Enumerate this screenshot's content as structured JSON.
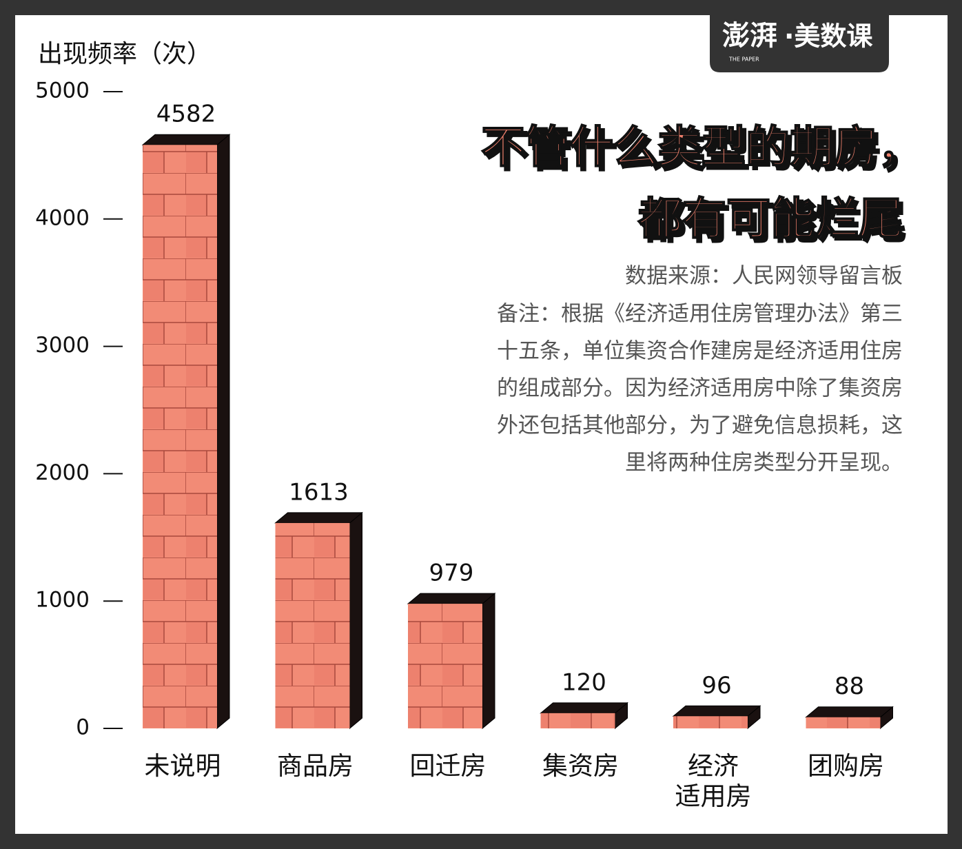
{
  "logo": {
    "brand": "澎湃",
    "sub": "THE PAPER",
    "name": "·美数课"
  },
  "chart_data": {
    "type": "bar",
    "title": [
      "不管什么类型的期房，",
      "都有可能烂尾"
    ],
    "y_label": "出现频率（次）",
    "source": "数据来源：人民网领导留言板",
    "note": [
      "备注：根据《经济适用住房管理办法》第三",
      "十五条，单位集资合作建房是经济适用住房",
      "的组成部分。因为经济适用房中除了集资房",
      "外还包括其他部分，为了避免信息损耗，这",
      "里将两种住房类型分开呈现。"
    ],
    "categories": [
      "未说明",
      "商品房",
      "回迁房",
      "集资房",
      "经济\n适用房",
      "团购房"
    ],
    "values": [
      4582,
      1613,
      979,
      120,
      96,
      88
    ],
    "color": "#f28b76",
    "ylim": [
      0,
      5000
    ],
    "yticks": [
      0,
      1000,
      2000,
      3000,
      4000,
      5000
    ]
  }
}
